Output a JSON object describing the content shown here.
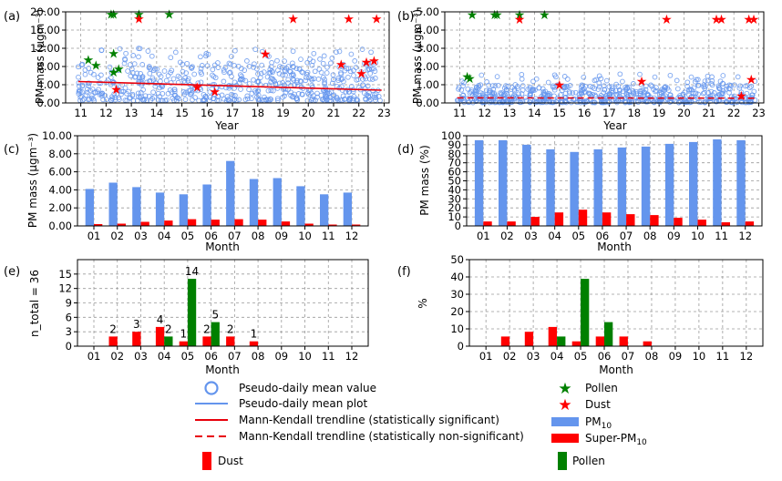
{
  "panels": [
    {
      "id": "a",
      "tag": "(a)",
      "ylabel": "PM mass (μgm⁻³)",
      "xlabel": "Year"
    },
    {
      "id": "b",
      "tag": "(b)",
      "ylabel": "PM mass (μgm⁻³)",
      "xlabel": "Year"
    },
    {
      "id": "c",
      "tag": "(c)",
      "ylabel": "PM mass (μgm⁻³)",
      "xlabel": "Month"
    },
    {
      "id": "d",
      "tag": "(d)",
      "ylabel": "PM mass (%)",
      "xlabel": "Month"
    },
    {
      "id": "e",
      "tag": "(e)",
      "ylabel": "n_total = 36",
      "xlabel": "Month"
    },
    {
      "id": "f",
      "tag": "(f)",
      "ylabel": "%",
      "xlabel": "Month"
    }
  ],
  "legend": {
    "pseudo_daily_value": "Pseudo-daily mean value",
    "pseudo_daily_plot": "Pseudo-daily mean plot",
    "mk_significant": "Mann-Kendall trendline (statistically significant)",
    "mk_nonsignificant": "Mann-Kendall trendline (statistically non-significant)",
    "dust_bar": "Dust",
    "pollen_star": "Pollen",
    "dust_star": "Dust",
    "pm10": "PM",
    "pm10_sub": "10",
    "super_pm10": "Super-PM",
    "super_pm10_sub": "10",
    "pollen_bar": "Pollen"
  },
  "colors": {
    "pm10": "#6495ED",
    "super_pm10": "#FF0000",
    "dust": "#FF0000",
    "pollen": "#008000",
    "trend": "#E8000B",
    "grid": "#9a9a9a"
  },
  "chart_data": [
    {
      "panel": "a",
      "type": "scatter",
      "xlabel": "Year",
      "ylabel": "PM mass (μgm⁻³)",
      "xlim": [
        10.4,
        23.2
      ],
      "ylim": [
        0,
        20
      ],
      "xticks": [
        "11",
        "12",
        "13",
        "14",
        "15",
        "16",
        "17",
        "18",
        "19",
        "20",
        "21",
        "22",
        "23"
      ],
      "yticks": [
        "0.00",
        "4.00",
        "8.00",
        "12.00",
        "16.00",
        "20.00"
      ],
      "scatter_cloud": {
        "x_range": [
          10.9,
          22.9
        ],
        "center": 4.0,
        "spread_typical": [
          0.5,
          9.0
        ],
        "max": 12.0
      },
      "trend": {
        "x": [
          10.9,
          22.9
        ],
        "y": [
          4.7,
          2.8
        ],
        "significant": true
      },
      "pollen_stars": [
        [
          11.3,
          9.5
        ],
        [
          11.6,
          8.3
        ],
        [
          12.2,
          19.5
        ],
        [
          12.3,
          19.5
        ],
        [
          12.3,
          10.9
        ],
        [
          12.5,
          7.5
        ],
        [
          13.3,
          19.5
        ],
        [
          14.5,
          19.5
        ],
        [
          12.3,
          6.8
        ]
      ],
      "dust_stars": [
        [
          12.4,
          3.0
        ],
        [
          13.3,
          18.5
        ],
        [
          15.6,
          3.5
        ],
        [
          16.3,
          2.5
        ],
        [
          18.3,
          10.8
        ],
        [
          19.4,
          18.5
        ],
        [
          21.3,
          8.5
        ],
        [
          21.6,
          18.5
        ],
        [
          22.3,
          9.0
        ],
        [
          22.6,
          9.3
        ],
        [
          22.7,
          18.5
        ],
        [
          22.1,
          6.5
        ]
      ],
      "grid": true
    },
    {
      "panel": "b",
      "type": "scatter",
      "xlabel": "Year",
      "ylabel": "PM mass (μgm⁻³)",
      "xlim": [
        10.4,
        23.2
      ],
      "ylim": [
        0,
        5
      ],
      "xticks": [
        "11",
        "12",
        "13",
        "14",
        "15",
        "16",
        "17",
        "18",
        "19",
        "20",
        "21",
        "22",
        "23"
      ],
      "yticks": [
        "0.00",
        "1.00",
        "2.00",
        "3.00",
        "4.00",
        "5.00"
      ],
      "scatter_cloud": {
        "x_range": [
          10.9,
          22.9
        ],
        "center": 0.3,
        "spread_typical": [
          0.02,
          1.0
        ],
        "max": 1.6
      },
      "trend": {
        "x": [
          10.9,
          22.9
        ],
        "y": [
          0.28,
          0.26
        ],
        "significant": false
      },
      "pollen_stars": [
        [
          11.3,
          1.45
        ],
        [
          11.4,
          1.35
        ],
        [
          11.5,
          4.85
        ],
        [
          12.4,
          4.85
        ],
        [
          12.5,
          4.85
        ],
        [
          13.4,
          4.85
        ],
        [
          14.4,
          4.85
        ]
      ],
      "dust_stars": [
        [
          13.4,
          4.6
        ],
        [
          15.0,
          1.0
        ],
        [
          18.3,
          1.2
        ],
        [
          19.3,
          4.6
        ],
        [
          21.3,
          4.6
        ],
        [
          21.5,
          4.6
        ],
        [
          22.6,
          4.6
        ],
        [
          22.8,
          4.6
        ],
        [
          22.7,
          1.3
        ],
        [
          22.3,
          0.4
        ]
      ],
      "grid": true
    },
    {
      "panel": "c",
      "type": "bar",
      "xlabel": "Month",
      "ylabel": "PM mass (μgm⁻³)",
      "categories": [
        "01",
        "02",
        "03",
        "04",
        "05",
        "06",
        "07",
        "08",
        "09",
        "10",
        "11",
        "12"
      ],
      "ylim": [
        0,
        10
      ],
      "yticks": [
        "0.00",
        "2.00",
        "4.00",
        "6.00",
        "8.00",
        "10.00"
      ],
      "series": [
        {
          "name": "PM10",
          "values": [
            4.1,
            4.8,
            4.3,
            3.7,
            3.5,
            4.6,
            7.2,
            5.2,
            5.3,
            4.4,
            3.5,
            3.7
          ]
        },
        {
          "name": "Super-PM10",
          "values": [
            0.2,
            0.25,
            0.45,
            0.6,
            0.75,
            0.7,
            0.75,
            0.7,
            0.5,
            0.25,
            0.15,
            0.15
          ]
        }
      ]
    },
    {
      "panel": "d",
      "type": "bar",
      "xlabel": "Month",
      "ylabel": "PM mass (%)",
      "categories": [
        "01",
        "02",
        "03",
        "04",
        "05",
        "06",
        "07",
        "08",
        "09",
        "10",
        "11",
        "12"
      ],
      "ylim": [
        0,
        100
      ],
      "yticks": [
        "0",
        "10",
        "20",
        "30",
        "40",
        "50",
        "60",
        "70",
        "80",
        "90",
        "100"
      ],
      "series": [
        {
          "name": "PM10",
          "values": [
            95,
            95,
            90,
            85,
            82,
            85,
            87,
            88,
            91,
            93,
            96,
            95
          ]
        },
        {
          "name": "Super-PM10",
          "values": [
            5,
            5,
            10,
            15,
            18,
            15,
            13,
            12,
            9,
            7,
            4,
            5
          ]
        }
      ]
    },
    {
      "panel": "e",
      "type": "bar",
      "xlabel": "Month",
      "ylabel": "n_total = 36",
      "categories": [
        "01",
        "02",
        "03",
        "04",
        "05",
        "06",
        "07",
        "08",
        "09",
        "10",
        "11",
        "12"
      ],
      "ylim": [
        0,
        18
      ],
      "yticks": [
        "0",
        "3",
        "6",
        "9",
        "12",
        "15"
      ],
      "series": [
        {
          "name": "Dust",
          "values": [
            0,
            2,
            3,
            4,
            1,
            2,
            2,
            1,
            0,
            0,
            0,
            0
          ]
        },
        {
          "name": "Pollen",
          "values": [
            0,
            0,
            0,
            2,
            14,
            5,
            0,
            0,
            0,
            0,
            0,
            0
          ]
        }
      ],
      "data_labels": [
        {
          "month": "02",
          "text": "2",
          "series": "Dust"
        },
        {
          "month": "03",
          "text": "3",
          "series": "Dust"
        },
        {
          "month": "04",
          "text": "4",
          "series": "Dust"
        },
        {
          "month": "04",
          "text": "2",
          "series": "Pollen"
        },
        {
          "month": "05",
          "text": "1",
          "series": "Dust"
        },
        {
          "month": "05",
          "text": "14",
          "series": "Pollen"
        },
        {
          "month": "06",
          "text": "2",
          "series": "Dust"
        },
        {
          "month": "06",
          "text": "5",
          "series": "Pollen"
        },
        {
          "month": "07",
          "text": "2",
          "series": "Dust"
        },
        {
          "month": "08",
          "text": "1",
          "series": "Dust"
        }
      ]
    },
    {
      "panel": "f",
      "type": "bar",
      "xlabel": "Month",
      "ylabel": "%",
      "categories": [
        "01",
        "02",
        "03",
        "04",
        "05",
        "06",
        "07",
        "08",
        "09",
        "10",
        "11",
        "12"
      ],
      "ylim": [
        0,
        50
      ],
      "yticks": [
        "0",
        "10",
        "20",
        "30",
        "40",
        "50"
      ],
      "series": [
        {
          "name": "Dust",
          "values": [
            0,
            5.6,
            8.3,
            11.1,
            2.8,
            5.6,
            5.6,
            2.8,
            0,
            0,
            0,
            0
          ]
        },
        {
          "name": "Pollen",
          "values": [
            0,
            0,
            0,
            5.6,
            38.9,
            13.9,
            0,
            0,
            0,
            0,
            0,
            0
          ]
        }
      ]
    }
  ]
}
